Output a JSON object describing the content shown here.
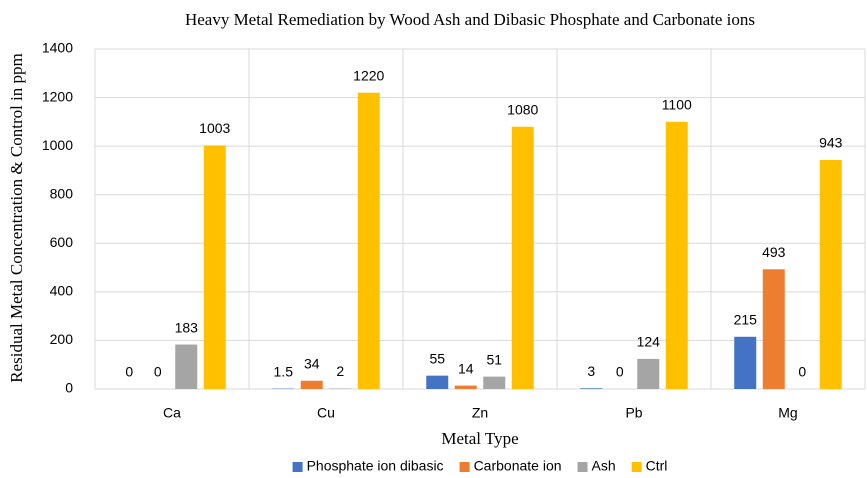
{
  "chart_data": {
    "type": "bar",
    "title": "Heavy Metal Remediation by Wood Ash and Dibasic Phosphate and Carbonate ions",
    "x_label": "Metal Type",
    "y_label": "Residual Metal Concentration & Control in ppm",
    "categories": [
      "Ca",
      "Cu",
      "Zn",
      "Pb",
      "Mg"
    ],
    "series": [
      {
        "name": "Phosphate ion dibasic",
        "color": "#4472c4",
        "values": [
          0,
          1.5,
          55,
          3,
          215
        ]
      },
      {
        "name": "Carbonate ion",
        "color": "#ed7d31",
        "values": [
          0,
          34,
          14,
          0,
          493
        ]
      },
      {
        "name": "Ash",
        "color": "#a5a5a5",
        "values": [
          183,
          2,
          51,
          124,
          0
        ]
      },
      {
        "name": "Ctrl",
        "color": "#ffc000",
        "values": [
          1003,
          1220,
          1080,
          1100,
          943
        ]
      }
    ],
    "ylim": [
      0,
      1400
    ],
    "yticks": [
      0,
      200,
      400,
      600,
      800,
      1000,
      1200,
      1400
    ],
    "grid": true,
    "legend": "bottom"
  }
}
